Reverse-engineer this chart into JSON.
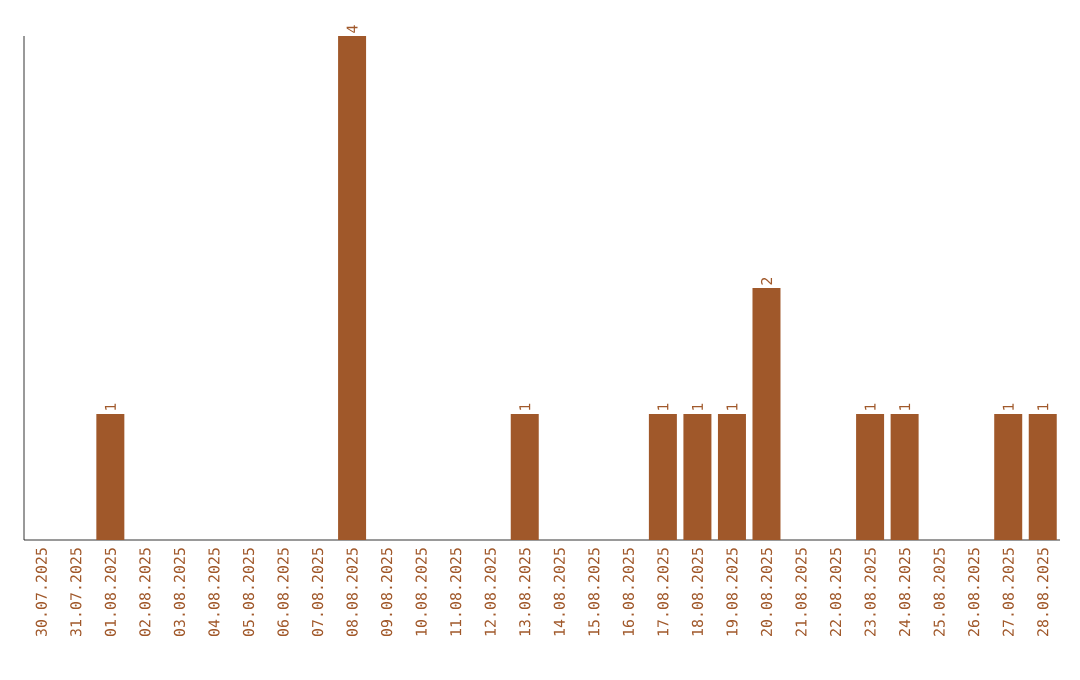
{
  "chart_data": {
    "type": "bar",
    "categories": [
      "30.07.2025",
      "31.07.2025",
      "01.08.2025",
      "02.08.2025",
      "03.08.2025",
      "04.08.2025",
      "05.08.2025",
      "06.08.2025",
      "07.08.2025",
      "08.08.2025",
      "09.08.2025",
      "10.08.2025",
      "11.08.2025",
      "12.08.2025",
      "13.08.2025",
      "14.08.2025",
      "15.08.2025",
      "16.08.2025",
      "17.08.2025",
      "18.08.2025",
      "19.08.2025",
      "20.08.2025",
      "21.08.2025",
      "22.08.2025",
      "23.08.2025",
      "24.08.2025",
      "25.08.2025",
      "26.08.2025",
      "27.08.2025",
      "28.08.2025"
    ],
    "values": [
      0,
      0,
      1,
      0,
      0,
      0,
      0,
      0,
      0,
      4,
      0,
      0,
      0,
      0,
      1,
      0,
      0,
      0,
      1,
      1,
      1,
      2,
      0,
      0,
      1,
      1,
      0,
      0,
      1,
      1
    ],
    "value_labels": [
      null,
      null,
      "1",
      null,
      null,
      null,
      null,
      null,
      null,
      "4",
      null,
      null,
      null,
      null,
      "1",
      null,
      null,
      null,
      "1",
      "1",
      "1",
      "2",
      null,
      null,
      "1",
      "1",
      null,
      null,
      "1",
      "1"
    ],
    "color": "#a0582a",
    "tick_labels": "x"
  }
}
